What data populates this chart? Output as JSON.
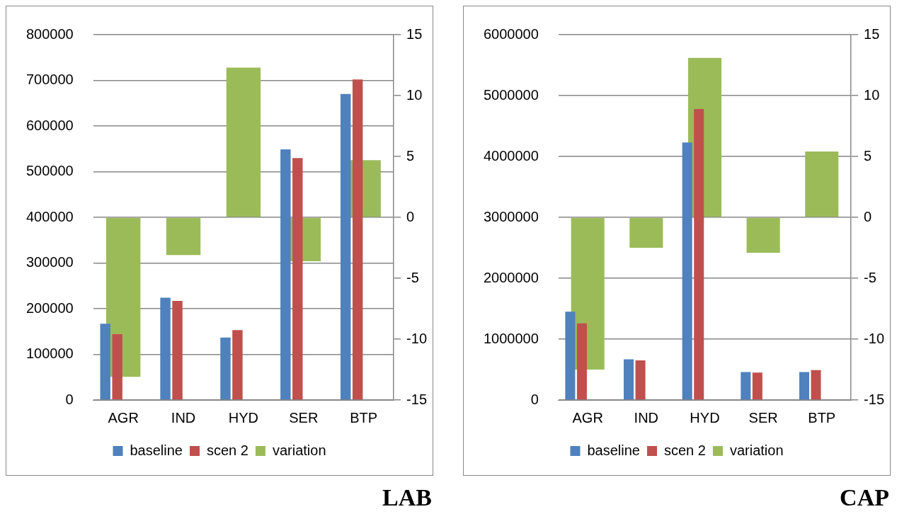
{
  "chart_data": [
    {
      "type": "bar",
      "title": "LAB",
      "categories": [
        "AGR",
        "IND",
        "HYD",
        "SER",
        "BTP"
      ],
      "series": [
        {
          "name": "baseline",
          "color": "#4f81bd",
          "values": [
            167000,
            224000,
            137000,
            549000,
            670000
          ]
        },
        {
          "name": "scen 2",
          "color": "#c0504d",
          "values": [
            144000,
            217000,
            153000,
            530000,
            702000
          ]
        },
        {
          "name": "variation",
          "color": "#9bbb59",
          "axis": "y2",
          "values": [
            -13.1,
            -3.1,
            12.3,
            -3.6,
            4.7
          ]
        }
      ],
      "ylim": [
        0,
        800000
      ],
      "yticks": [
        0,
        100000,
        200000,
        300000,
        400000,
        500000,
        600000,
        700000,
        800000
      ],
      "y2lim": [
        -15,
        15
      ],
      "y2ticks": [
        -15,
        -10,
        -5,
        0,
        5,
        10,
        15
      ],
      "grid": "y",
      "legend": "bottom"
    },
    {
      "type": "bar",
      "title": "CAP",
      "categories": [
        "AGR",
        "IND",
        "HYD",
        "SER",
        "BTP"
      ],
      "series": [
        {
          "name": "baseline",
          "color": "#4f81bd",
          "values": [
            1450000,
            670000,
            4230000,
            460000,
            460000
          ]
        },
        {
          "name": "scen 2",
          "color": "#c0504d",
          "values": [
            1260000,
            650000,
            4780000,
            450000,
            490000
          ]
        },
        {
          "name": "variation",
          "color": "#9bbb59",
          "axis": "y2",
          "values": [
            -12.5,
            -2.5,
            13.1,
            -2.9,
            5.4
          ]
        }
      ],
      "ylim": [
        0,
        6000000
      ],
      "yticks": [
        0,
        1000000,
        2000000,
        3000000,
        4000000,
        5000000,
        6000000
      ],
      "y2lim": [
        -15,
        15
      ],
      "y2ticks": [
        -15,
        -10,
        -5,
        0,
        5,
        10,
        15
      ],
      "grid": "y",
      "legend": "bottom"
    }
  ]
}
